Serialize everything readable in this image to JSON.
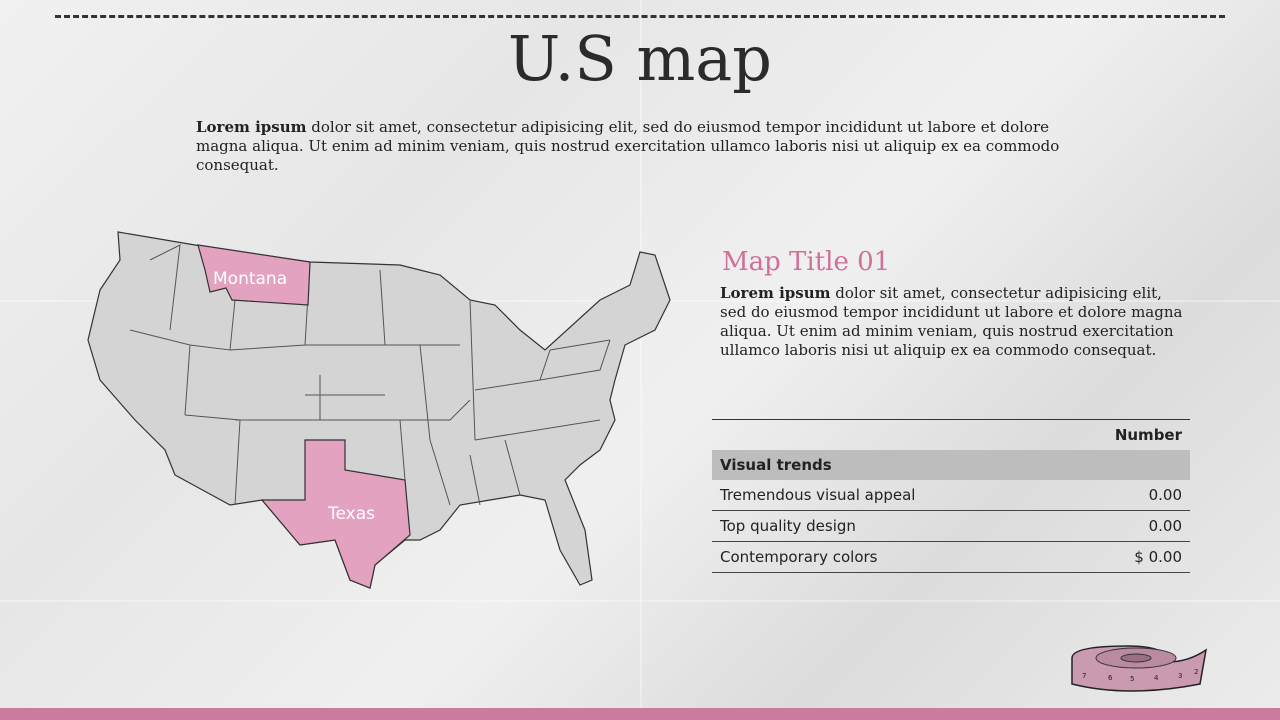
{
  "title": "U.S map",
  "intro": {
    "bold": "Lorem ipsum",
    "text": " dolor sit amet, consectetur adipisicing elit, sed do eiusmod tempor incididunt ut labore et dolore magna aliqua. Ut enim ad minim veniam, quis nostrud exercitation ullamco laboris nisi ut aliquip ex ea commodo consequat."
  },
  "map": {
    "highlighted_states": [
      "Montana",
      "Texas"
    ],
    "highlight_color": "#e2a2c0",
    "base_color": "#d4d4d4"
  },
  "panel": {
    "title": "Map Title 01",
    "bold": "Lorem ipsum",
    "text": " dolor sit amet, consectetur adipisicing elit, sed do eiusmod tempor incididunt ut labore et dolore magna aliqua. Ut enim ad minim veniam, quis nostrud exercitation ullamco laboris nisi ut aliquip ex ea commodo consequat."
  },
  "table": {
    "header": "Number",
    "group": "Visual trends",
    "rows": [
      {
        "label": "Tremendous visual appeal",
        "value": "0.00"
      },
      {
        "label": "Top quality design",
        "value": "0.00"
      },
      {
        "label": "Contemporary colors",
        "value": "$ 0.00"
      }
    ]
  },
  "colors": {
    "accent": "#d0709a",
    "bottom_bar": "#c97c9e"
  },
  "decor": {
    "icon": "tape-measure-icon",
    "tape_numbers": [
      "7",
      "6",
      "5",
      "4",
      "3",
      "2"
    ]
  }
}
